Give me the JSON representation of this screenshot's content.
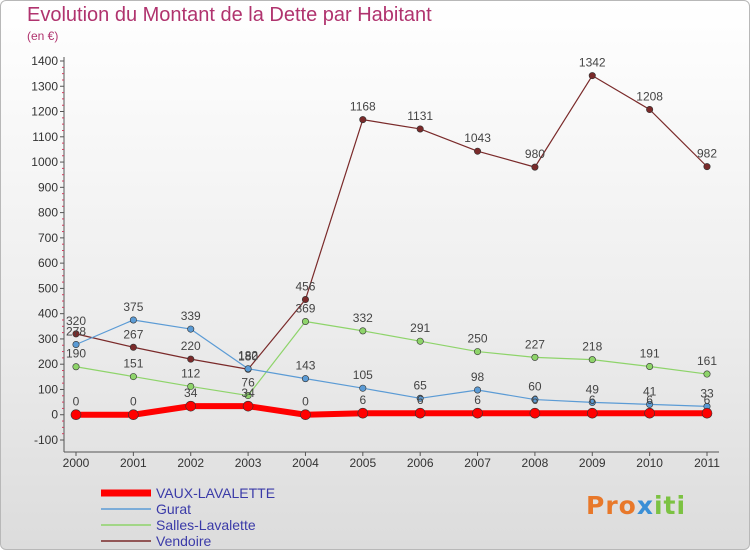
{
  "title": "Evolution du Montant de la Dette par Habitant",
  "subtitle": "(en €)",
  "logo": {
    "text": "Proxiti"
  },
  "chart_data": {
    "type": "line",
    "title": "Evolution du Montant de la Dette par Habitant",
    "subtitle": "(en €)",
    "xlabel": "",
    "ylabel": "",
    "x": [
      "2000",
      "2001",
      "2002",
      "2003",
      "2004",
      "2005",
      "2006",
      "2007",
      "2008",
      "2009",
      "2010",
      "2011"
    ],
    "ylim": [
      -100,
      1400
    ],
    "yticks": [
      -100,
      0,
      100,
      200,
      300,
      400,
      500,
      600,
      700,
      800,
      900,
      1000,
      1100,
      1200,
      1300,
      1400
    ],
    "grid": false,
    "legend_position": "bottom-left",
    "series": [
      {
        "name": "Vendoire",
        "color": "#7a2a2a",
        "width": 1.2,
        "values": [
          320,
          267,
          220,
          180,
          456,
          1168,
          1131,
          1043,
          980,
          1342,
          1208,
          982
        ],
        "labels": [
          "320",
          "267",
          "220",
          "180",
          "456",
          "1168",
          "1131",
          "1043",
          "980",
          "1342",
          "1208",
          "982"
        ]
      },
      {
        "name": "Salles-Lavalette",
        "color": "#8ed46a",
        "width": 1.2,
        "values": [
          190,
          151,
          112,
          76,
          369,
          332,
          291,
          250,
          227,
          218,
          191,
          161
        ],
        "labels": [
          "190",
          "151",
          "112",
          "76",
          "369",
          "332",
          "291",
          "250",
          "227",
          "218",
          "191",
          "161"
        ]
      },
      {
        "name": "Gurat",
        "color": "#5b9bd5",
        "width": 1.2,
        "values": [
          278,
          375,
          339,
          182,
          143,
          105,
          65,
          98,
          60,
          49,
          41,
          33
        ],
        "labels": [
          "278",
          "375",
          "339",
          "182",
          "143",
          "105",
          "65",
          "98",
          "60",
          "49",
          "41",
          "33"
        ]
      },
      {
        "name": "VAUX-LAVALETTE",
        "color": "#ff0000",
        "width": 6,
        "values": [
          0,
          0,
          34,
          34,
          0,
          6,
          6,
          6,
          6,
          6,
          6,
          6
        ],
        "labels": [
          "0",
          "0",
          "34",
          "34",
          "0",
          "6",
          "6",
          "6",
          "6",
          "6",
          "6",
          "6"
        ]
      }
    ]
  }
}
